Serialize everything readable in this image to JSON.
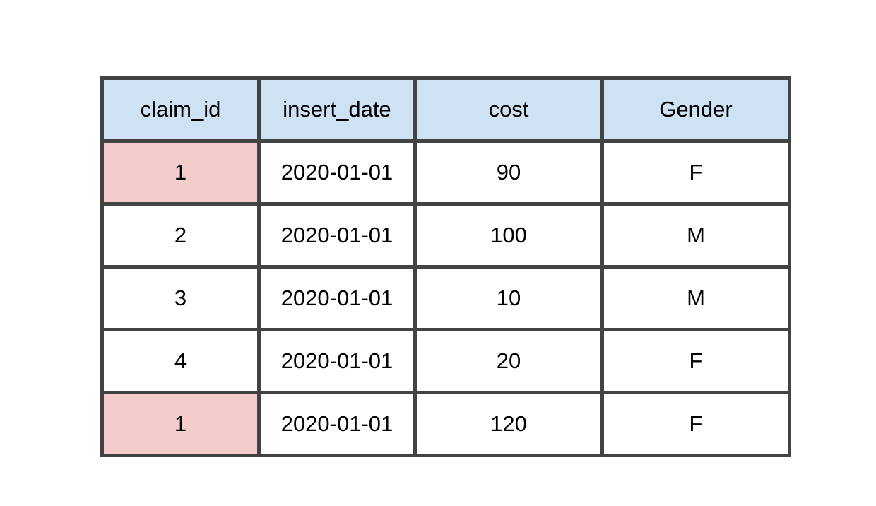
{
  "table": {
    "columns": [
      "claim_id",
      "insert_date",
      "cost",
      "Gender"
    ],
    "rows": [
      {
        "claim_id": "1",
        "insert_date": "2020-01-01",
        "cost": "90",
        "gender": "F",
        "highlight": true
      },
      {
        "claim_id": "2",
        "insert_date": "2020-01-01",
        "cost": "100",
        "gender": "M",
        "highlight": false
      },
      {
        "claim_id": "3",
        "insert_date": "2020-01-01",
        "cost": "10",
        "gender": "M",
        "highlight": false
      },
      {
        "claim_id": "4",
        "insert_date": "2020-01-01",
        "cost": "20",
        "gender": "F",
        "highlight": false
      },
      {
        "claim_id": "1",
        "insert_date": "2020-01-01",
        "cost": "120",
        "gender": "F",
        "highlight": true
      }
    ]
  },
  "colors": {
    "header_fill": "#cfe2f3",
    "highlight_fill": "#f4cccc",
    "border": "#434343"
  }
}
